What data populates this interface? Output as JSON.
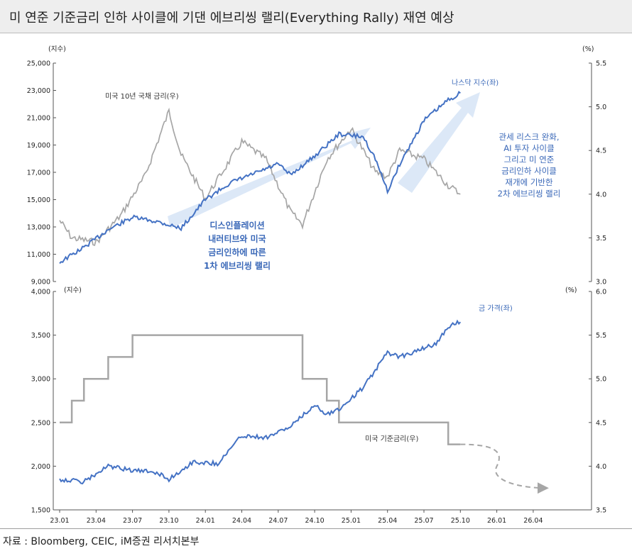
{
  "title": "미 연준 기준금리 인하 사이클에 기댄 에브리씽 랠리(Everything Rally) 재연 예상",
  "source": "자료 : Bloomberg, CEIC, iM증권 리서치본부",
  "colors": {
    "blue": "#4472c4",
    "gray": "#a6a6a6",
    "arrow": "#dce8f7",
    "dash": "#a6a6a6"
  },
  "chart_data": [
    {
      "type": "line",
      "left_unit": "(지수)",
      "right_unit": "(%)",
      "ylim_left": [
        9000,
        25000
      ],
      "ylim_right": [
        3.0,
        5.5
      ],
      "left_ticks": [
        "25,000",
        "23,000",
        "21,000",
        "19,000",
        "17,000",
        "15,000",
        "13,000",
        "11,000",
        "9,000"
      ],
      "right_ticks": [
        "5.5",
        "5.0",
        "4.5",
        "4.0",
        "3.5",
        "3.0"
      ],
      "series": [
        {
          "name": "나스닥 지수(좌)",
          "axis": "left",
          "color": "#4472c4",
          "x": [
            "23.01",
            "23.03",
            "23.05",
            "23.07",
            "23.09",
            "23.11",
            "24.01",
            "24.03",
            "24.05",
            "24.07",
            "24.08",
            "24.10",
            "24.12",
            "25.02",
            "25.03",
            "25.04",
            "25.05",
            "25.07",
            "25.09",
            "25.10"
          ],
          "values": [
            10400,
            11500,
            12800,
            13700,
            13400,
            12900,
            15000,
            16200,
            16900,
            17600,
            16800,
            18200,
            19800,
            19600,
            18000,
            15600,
            17600,
            20800,
            22300,
            22800
          ]
        },
        {
          "name": "미국 10년 국채 금리(우)",
          "axis": "right",
          "color": "#a6a6a6",
          "x": [
            "23.01",
            "23.02",
            "23.04",
            "23.06",
            "23.08",
            "23.10",
            "23.11",
            "24.01",
            "24.04",
            "24.06",
            "24.08",
            "24.09",
            "24.11",
            "25.01",
            "25.03",
            "25.04",
            "25.05",
            "25.07",
            "25.09",
            "25.10"
          ],
          "values": [
            3.7,
            3.5,
            3.45,
            3.75,
            4.2,
            4.95,
            4.45,
            3.95,
            4.6,
            4.4,
            3.8,
            3.65,
            4.4,
            4.75,
            4.25,
            4.2,
            4.5,
            4.4,
            4.1,
            4.0
          ]
        }
      ],
      "annotations": {
        "arrow_text_1": [
          "디스인플레이션",
          "내러티브와 미국",
          "금리인하에 따른",
          "1차 에브리씽 랠리"
        ],
        "arrow_text_2": [
          "관세 리스크 완화,",
          "AI 투자 사이클",
          "그리고 미 연준",
          "금리인하 사이클",
          "재개에 기반한",
          "2차 에브리씽 랠리"
        ]
      }
    },
    {
      "type": "line",
      "left_unit": "(지수)",
      "right_unit": "(%)",
      "ylim_left": [
        1500,
        4000
      ],
      "ylim_right": [
        3.5,
        6.0
      ],
      "left_ticks": [
        "4,000",
        "3,500",
        "3,000",
        "2,500",
        "2,000",
        "1,500"
      ],
      "right_ticks": [
        "6.0",
        "5.5",
        "5.0",
        "4.5",
        "4.0",
        "3.5"
      ],
      "x_ticks": [
        "23.01",
        "23.04",
        "23.07",
        "23.10",
        "24.01",
        "24.04",
        "24.07",
        "24.10",
        "25.01",
        "25.04",
        "25.07",
        "25.10",
        "26.01",
        "26.04"
      ],
      "series": [
        {
          "name": "금 가격(좌)",
          "axis": "left",
          "color": "#4472c4",
          "x": [
            "23.01",
            "23.03",
            "23.05",
            "23.07",
            "23.09",
            "23.10",
            "23.12",
            "24.02",
            "24.04",
            "24.06",
            "24.08",
            "24.10",
            "24.11",
            "24.12",
            "25.02",
            "25.04",
            "25.05",
            "25.07",
            "25.08",
            "25.09",
            "25.10"
          ],
          "values": [
            1850,
            1820,
            2000,
            1950,
            1930,
            1850,
            2050,
            2030,
            2350,
            2330,
            2450,
            2700,
            2600,
            2650,
            2900,
            3300,
            3250,
            3350,
            3400,
            3600,
            3650
          ]
        },
        {
          "name": "미국 기준금리(우)",
          "axis": "right",
          "color": "#a6a6a6",
          "x": [
            "23.01",
            "23.02",
            "23.03",
            "23.05",
            "23.06",
            "23.07",
            "24.09",
            "24.11",
            "24.12",
            "25.09",
            "25.10"
          ],
          "values": [
            4.5,
            4.75,
            5.0,
            5.25,
            5.25,
            5.5,
            5.0,
            4.75,
            4.5,
            4.25,
            4.25
          ]
        }
      ],
      "forecast": {
        "x": [
          "25.10",
          "26.01",
          "26.04"
        ],
        "values": [
          4.25,
          4.0,
          3.75
        ]
      }
    }
  ]
}
